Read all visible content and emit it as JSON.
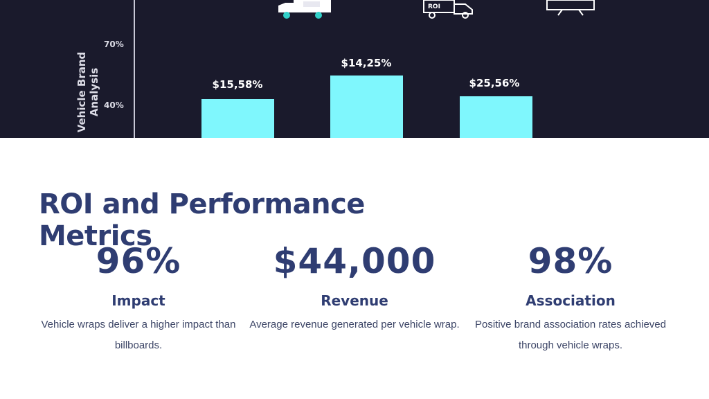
{
  "hero": {
    "y_axis_label": "Vehicle Brand Analysis",
    "ticks": [
      "70%",
      "40%"
    ],
    "bar_labels": [
      "$15,58%",
      "$14,25%",
      "$25,56%"
    ],
    "truck_sign": "ROI",
    "colors": {
      "background": "#1a1a2c",
      "bar": "#7ff7fd"
    }
  },
  "title": "ROI and Performance Metrics",
  "metrics": [
    {
      "value": "96%",
      "label": "Impact",
      "description": "Vehicle wraps deliver a higher impact than billboards."
    },
    {
      "value": "$44,000",
      "label": "Revenue",
      "description": "Average revenue generated per vehicle wrap."
    },
    {
      "value": "98%",
      "label": "Association",
      "description": "Positive brand association rates achieved through vehicle wraps."
    }
  ],
  "colors": {
    "heading": "#2f3d72",
    "body_text": "#3c4566"
  }
}
